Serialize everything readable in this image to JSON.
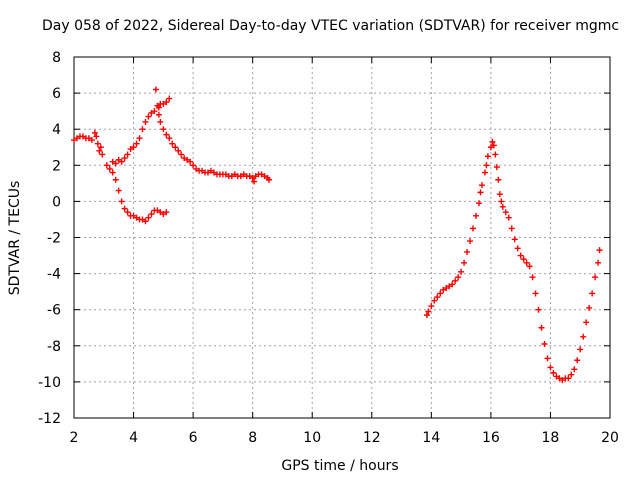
{
  "chart_data": {
    "type": "scatter",
    "title": "Day 058 of 2022, Sidereal Day-to-day VTEC variation (SDTVAR) for receiver mgmc",
    "xlabel": "GPS time / hours",
    "ylabel": "SDTVAR / TECUs",
    "xlim": [
      2,
      20
    ],
    "ylim": [
      -12,
      8
    ],
    "xticks": [
      2,
      4,
      6,
      8,
      10,
      12,
      14,
      16,
      18,
      20
    ],
    "yticks": [
      -12,
      -10,
      -8,
      -6,
      -4,
      -2,
      0,
      2,
      4,
      6,
      8
    ],
    "grid": true,
    "marker": "+",
    "color": "#ff0000",
    "series": [
      {
        "name": "SDTVAR",
        "points": [
          [
            2.0,
            3.4
          ],
          [
            2.1,
            3.5
          ],
          [
            2.2,
            3.6
          ],
          [
            2.3,
            3.6
          ],
          [
            2.4,
            3.5
          ],
          [
            2.5,
            3.5
          ],
          [
            2.6,
            3.4
          ],
          [
            2.7,
            3.8
          ],
          [
            2.75,
            3.6
          ],
          [
            2.8,
            3.2
          ],
          [
            2.85,
            2.8
          ],
          [
            2.9,
            3.0
          ],
          [
            2.95,
            2.6
          ],
          [
            3.1,
            2.0
          ],
          [
            3.2,
            1.8
          ],
          [
            3.3,
            2.2
          ],
          [
            3.4,
            2.1
          ],
          [
            3.5,
            2.3
          ],
          [
            3.6,
            2.2
          ],
          [
            3.7,
            2.4
          ],
          [
            3.8,
            2.6
          ],
          [
            3.9,
            2.9
          ],
          [
            4.0,
            3.0
          ],
          [
            4.1,
            3.2
          ],
          [
            4.2,
            3.5
          ],
          [
            4.3,
            4.0
          ],
          [
            4.4,
            4.4
          ],
          [
            4.5,
            4.7
          ],
          [
            4.6,
            4.9
          ],
          [
            4.7,
            5.0
          ],
          [
            4.75,
            6.2
          ],
          [
            4.8,
            5.3
          ],
          [
            4.85,
            5.2
          ],
          [
            4.9,
            5.4
          ],
          [
            5.0,
            5.4
          ],
          [
            5.1,
            5.5
          ],
          [
            5.2,
            5.7
          ],
          [
            4.85,
            4.8
          ],
          [
            4.9,
            4.4
          ],
          [
            5.0,
            4.0
          ],
          [
            5.1,
            3.7
          ],
          [
            5.2,
            3.5
          ],
          [
            5.3,
            3.2
          ],
          [
            5.4,
            3.0
          ],
          [
            5.5,
            2.8
          ],
          [
            5.6,
            2.6
          ],
          [
            5.7,
            2.4
          ],
          [
            5.8,
            2.3
          ],
          [
            5.9,
            2.2
          ],
          [
            6.0,
            2.0
          ],
          [
            6.1,
            1.8
          ],
          [
            6.2,
            1.7
          ],
          [
            6.3,
            1.7
          ],
          [
            6.4,
            1.6
          ],
          [
            6.5,
            1.6
          ],
          [
            6.6,
            1.7
          ],
          [
            6.7,
            1.6
          ],
          [
            6.8,
            1.5
          ],
          [
            6.9,
            1.5
          ],
          [
            7.0,
            1.5
          ],
          [
            7.1,
            1.5
          ],
          [
            7.2,
            1.4
          ],
          [
            7.3,
            1.4
          ],
          [
            7.4,
            1.5
          ],
          [
            7.5,
            1.4
          ],
          [
            7.6,
            1.4
          ],
          [
            7.7,
            1.5
          ],
          [
            7.8,
            1.4
          ],
          [
            7.9,
            1.4
          ],
          [
            8.0,
            1.3
          ],
          [
            8.05,
            1.1
          ],
          [
            8.1,
            1.4
          ],
          [
            8.2,
            1.5
          ],
          [
            8.3,
            1.5
          ],
          [
            8.4,
            1.4
          ],
          [
            8.5,
            1.3
          ],
          [
            8.55,
            1.2
          ],
          [
            3.3,
            1.6
          ],
          [
            3.4,
            1.2
          ],
          [
            3.5,
            0.6
          ],
          [
            3.6,
            0.0
          ],
          [
            3.7,
            -0.4
          ],
          [
            3.8,
            -0.6
          ],
          [
            3.9,
            -0.8
          ],
          [
            4.0,
            -0.8
          ],
          [
            4.1,
            -0.9
          ],
          [
            4.2,
            -1.0
          ],
          [
            4.3,
            -1.0
          ],
          [
            4.4,
            -1.1
          ],
          [
            4.5,
            -0.9
          ],
          [
            4.6,
            -0.7
          ],
          [
            4.7,
            -0.5
          ],
          [
            4.8,
            -0.5
          ],
          [
            4.9,
            -0.6
          ],
          [
            5.0,
            -0.7
          ],
          [
            5.1,
            -0.6
          ],
          [
            13.85,
            -6.3
          ],
          [
            13.9,
            -6.1
          ],
          [
            14.0,
            -5.8
          ],
          [
            14.1,
            -5.5
          ],
          [
            14.2,
            -5.3
          ],
          [
            14.3,
            -5.1
          ],
          [
            14.4,
            -4.9
          ],
          [
            14.5,
            -4.8
          ],
          [
            14.6,
            -4.7
          ],
          [
            14.7,
            -4.6
          ],
          [
            14.8,
            -4.4
          ],
          [
            14.9,
            -4.2
          ],
          [
            15.0,
            -3.9
          ],
          [
            15.1,
            -3.4
          ],
          [
            15.2,
            -2.8
          ],
          [
            15.3,
            -2.2
          ],
          [
            15.4,
            -1.5
          ],
          [
            15.5,
            -0.8
          ],
          [
            15.6,
            -0.1
          ],
          [
            15.65,
            0.5
          ],
          [
            15.7,
            0.9
          ],
          [
            15.8,
            1.6
          ],
          [
            15.85,
            2.0
          ],
          [
            15.9,
            2.5
          ],
          [
            16.0,
            3.0
          ],
          [
            16.05,
            3.3
          ],
          [
            16.1,
            3.1
          ],
          [
            16.15,
            2.6
          ],
          [
            16.2,
            1.9
          ],
          [
            16.25,
            1.2
          ],
          [
            16.3,
            0.4
          ],
          [
            16.35,
            0.0
          ],
          [
            16.4,
            -0.3
          ],
          [
            16.5,
            -0.6
          ],
          [
            16.6,
            -0.9
          ],
          [
            16.7,
            -1.5
          ],
          [
            16.8,
            -2.1
          ],
          [
            16.9,
            -2.6
          ],
          [
            17.0,
            -3.0
          ],
          [
            17.1,
            -3.2
          ],
          [
            17.2,
            -3.4
          ],
          [
            17.3,
            -3.6
          ],
          [
            17.4,
            -4.2
          ],
          [
            17.5,
            -5.1
          ],
          [
            17.6,
            -6.0
          ],
          [
            17.7,
            -7.0
          ],
          [
            17.8,
            -7.9
          ],
          [
            17.9,
            -8.7
          ],
          [
            18.0,
            -9.2
          ],
          [
            18.1,
            -9.5
          ],
          [
            18.2,
            -9.7
          ],
          [
            18.3,
            -9.8
          ],
          [
            18.4,
            -9.9
          ],
          [
            18.5,
            -9.8
          ],
          [
            18.6,
            -9.8
          ],
          [
            18.7,
            -9.6
          ],
          [
            18.8,
            -9.3
          ],
          [
            18.9,
            -8.8
          ],
          [
            19.0,
            -8.2
          ],
          [
            19.1,
            -7.5
          ],
          [
            19.2,
            -6.7
          ],
          [
            19.3,
            -5.9
          ],
          [
            19.4,
            -5.1
          ],
          [
            19.5,
            -4.2
          ],
          [
            19.6,
            -3.4
          ],
          [
            19.65,
            -2.7
          ]
        ]
      }
    ]
  }
}
